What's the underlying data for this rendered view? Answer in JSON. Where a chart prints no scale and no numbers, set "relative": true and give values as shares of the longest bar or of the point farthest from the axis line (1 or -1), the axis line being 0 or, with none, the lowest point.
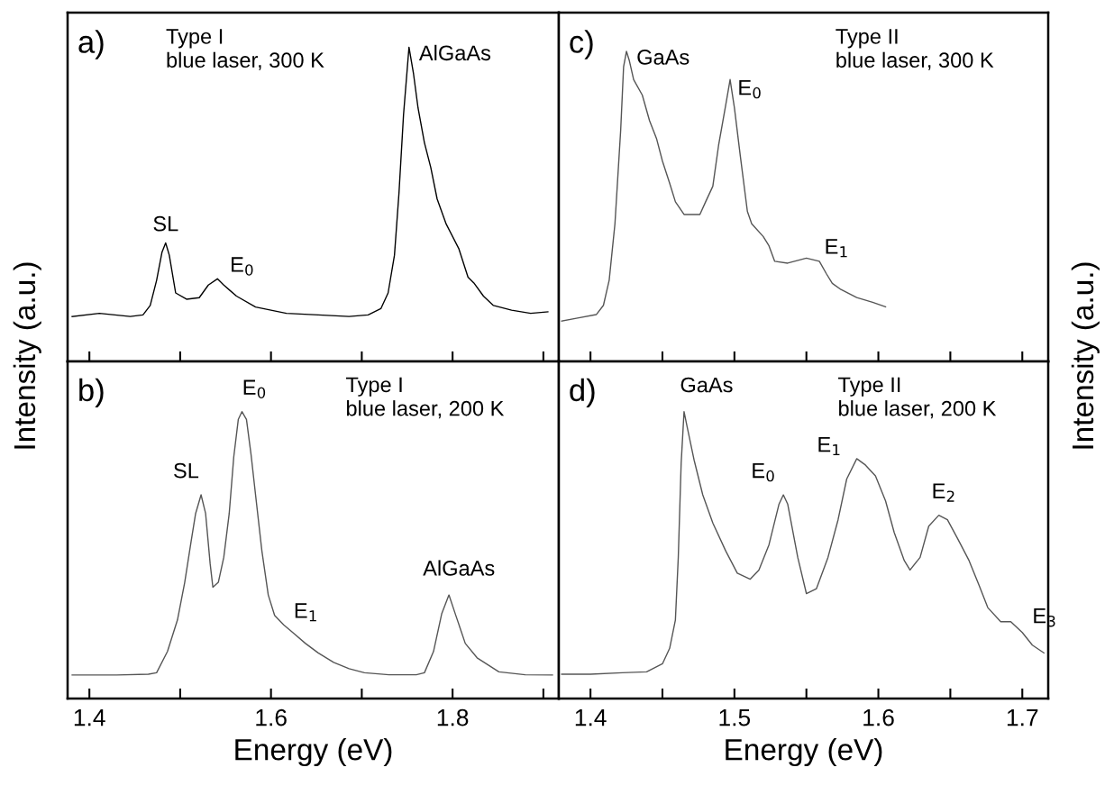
{
  "chart_data": [
    {
      "type": "line",
      "relative": true,
      "xlim": [
        1.376,
        1.917
      ],
      "xticks": [
        1.4,
        {
          "value": 1.5,
          "label": null
        },
        1.6,
        {
          "value": 1.7,
          "label": null
        },
        1.8,
        {
          "value": 1.9,
          "label": null
        }
      ],
      "tick_labels": false,
      "ylabel": "Intensity (a.u.)",
      "annotations": [
        "a)",
        "Type I\nblue laser, 300 K",
        {
          "text": "SL",
          "x": 1.484,
          "y": 0.377
        },
        {
          "text": "E$_{0}$",
          "x": 1.541,
          "y": 0.263
        },
        {
          "text": "AlGaAs",
          "x": 1.752,
          "y": 1.0
        }
      ],
      "series": [
        {
          "color": "#000000",
          "x": [
            1.381,
            1.411,
            1.445,
            1.459,
            1.467,
            1.474,
            1.48,
            1.484,
            1.488,
            1.495,
            1.507,
            1.521,
            1.531,
            1.541,
            1.548,
            1.562,
            1.583,
            1.617,
            1.652,
            1.686,
            1.707,
            1.721,
            1.729,
            1.736,
            1.741,
            1.746,
            1.752,
            1.757,
            1.762,
            1.769,
            1.776,
            1.783,
            1.793,
            1.807,
            1.817,
            1.824,
            1.834,
            1.845,
            1.865,
            1.886,
            1.905
          ],
          "values": [
            0.143,
            0.153,
            0.143,
            0.148,
            0.178,
            0.258,
            0.348,
            0.377,
            0.338,
            0.218,
            0.198,
            0.203,
            0.243,
            0.263,
            0.243,
            0.208,
            0.173,
            0.153,
            0.148,
            0.143,
            0.148,
            0.168,
            0.218,
            0.338,
            0.537,
            0.786,
            1.0,
            0.915,
            0.806,
            0.696,
            0.617,
            0.517,
            0.437,
            0.358,
            0.268,
            0.248,
            0.208,
            0.178,
            0.163,
            0.153,
            0.158
          ]
        }
      ]
    },
    {
      "type": "line",
      "relative": true,
      "xlim": [
        1.378,
        1.718
      ],
      "xticks": [
        1.4,
        {
          "value": 1.45,
          "label": null
        },
        1.5,
        {
          "value": 1.55,
          "label": null
        },
        1.6,
        {
          "value": 1.65,
          "label": null
        },
        1.7
      ],
      "tick_labels": false,
      "y2label": "Intensity (a.u.)",
      "annotations": [
        "c)",
        "Type II\nblue laser, 300 K",
        {
          "text": "GaAs",
          "x": 1.425,
          "y": 1.0
        },
        {
          "text": "E$_{0}$",
          "x": 1.497,
          "y": 0.902
        },
        {
          "text": "E$_{1}$",
          "x": 1.559,
          "y": 0.317
        }
      ],
      "series": [
        {
          "color": "#555555",
          "x": [
            1.38,
            1.391,
            1.404,
            1.409,
            1.413,
            1.417,
            1.421,
            1.423,
            1.425,
            1.427,
            1.43,
            1.436,
            1.441,
            1.446,
            1.45,
            1.455,
            1.459,
            1.465,
            1.476,
            1.48,
            1.485,
            1.489,
            1.494,
            1.497,
            1.5,
            1.504,
            1.509,
            1.512,
            1.52,
            1.524,
            1.528,
            1.537,
            1.55,
            1.559,
            1.564,
            1.568,
            1.574,
            1.585,
            1.596,
            1.605
          ],
          "values": [
            0.13,
            0.14,
            0.151,
            0.181,
            0.262,
            0.444,
            0.747,
            0.95,
            1.0,
            0.97,
            0.909,
            0.859,
            0.777,
            0.717,
            0.646,
            0.575,
            0.515,
            0.474,
            0.474,
            0.515,
            0.565,
            0.697,
            0.828,
            0.909,
            0.818,
            0.666,
            0.484,
            0.444,
            0.403,
            0.373,
            0.323,
            0.317,
            0.333,
            0.323,
            0.282,
            0.252,
            0.232,
            0.206,
            0.191,
            0.176
          ]
        }
      ]
    },
    {
      "type": "line",
      "relative": true,
      "xlim": [
        1.376,
        1.917
      ],
      "xticks": [
        1.4,
        {
          "value": 1.5,
          "label": null
        },
        1.6,
        {
          "value": 1.7,
          "label": null
        },
        1.8,
        {
          "value": 1.9,
          "label": null
        }
      ],
      "tick_labels": "x",
      "xlabel": "Energy (eV)",
      "annotations": [
        "b)",
        "Type I\nblue laser, 200 K",
        {
          "text": "SL",
          "x": 1.523,
          "y": 0.71
        },
        {
          "text": "E$_{0}$",
          "x": 1.568,
          "y": 1.0
        },
        {
          "text": "E$_{1}$",
          "x": 1.614,
          "y": 0.257
        },
        {
          "text": "AlGaAs",
          "x": 1.796,
          "y": 0.361
        }
      ],
      "series": [
        {
          "color": "#555555",
          "x": [
            1.381,
            1.43,
            1.465,
            1.474,
            1.486,
            1.497,
            1.505,
            1.512,
            1.517,
            1.523,
            1.528,
            1.533,
            1.536,
            1.542,
            1.548,
            1.554,
            1.559,
            1.564,
            1.568,
            1.573,
            1.578,
            1.583,
            1.59,
            1.597,
            1.604,
            1.614,
            1.624,
            1.638,
            1.652,
            1.669,
            1.686,
            1.703,
            1.73,
            1.76,
            1.769,
            1.779,
            1.788,
            1.796,
            1.803,
            1.814,
            1.827,
            1.851,
            1.88,
            1.91
          ],
          "values": [
            0.082,
            0.082,
            0.085,
            0.09,
            0.164,
            0.274,
            0.405,
            0.547,
            0.645,
            0.71,
            0.645,
            0.47,
            0.388,
            0.405,
            0.492,
            0.645,
            0.842,
            0.973,
            1.0,
            0.973,
            0.852,
            0.71,
            0.514,
            0.361,
            0.29,
            0.257,
            0.23,
            0.192,
            0.159,
            0.126,
            0.104,
            0.09,
            0.083,
            0.083,
            0.09,
            0.164,
            0.295,
            0.361,
            0.295,
            0.192,
            0.142,
            0.093,
            0.083,
            0.082
          ]
        }
      ]
    },
    {
      "type": "line",
      "relative": true,
      "xlim": [
        1.378,
        1.718
      ],
      "xticks": [
        1.4,
        {
          "value": 1.45,
          "label": null
        },
        1.5,
        {
          "value": 1.55,
          "label": null
        },
        1.6,
        {
          "value": 1.65,
          "label": null
        },
        1.7
      ],
      "tick_labels": "x",
      "xlabel": "Energy (eV)",
      "annotations": [
        "d)",
        "Type II\nblue laser, 200 K",
        {
          "text": "GaAs",
          "x": 1.465,
          "y": 1.0
        },
        {
          "text": "E$_{0}$",
          "x": 1.534,
          "y": 0.71
        },
        {
          "text": "E$_{1}$",
          "x": 1.585,
          "y": 0.836
        },
        {
          "text": "E$_{2}$",
          "x": 1.642,
          "y": 0.639
        },
        {
          "text": "E$_{3}$",
          "x": 1.7,
          "y": 0.23
        }
      ],
      "series": [
        {
          "color": "#555555",
          "x": [
            1.38,
            1.4,
            1.422,
            1.439,
            1.45,
            1.455,
            1.459,
            1.461,
            1.463,
            1.465,
            1.467,
            1.472,
            1.478,
            1.485,
            1.494,
            1.502,
            1.511,
            1.517,
            1.524,
            1.531,
            1.534,
            1.537,
            1.544,
            1.55,
            1.557,
            1.565,
            1.572,
            1.578,
            1.585,
            1.591,
            1.598,
            1.605,
            1.611,
            1.618,
            1.622,
            1.629,
            1.635,
            1.642,
            1.648,
            1.655,
            1.663,
            1.67,
            1.676,
            1.685,
            1.692,
            1.7,
            1.707,
            1.715
          ],
          "values": [
            0.085,
            0.085,
            0.09,
            0.093,
            0.121,
            0.175,
            0.274,
            0.492,
            0.82,
            1.0,
            0.951,
            0.831,
            0.71,
            0.612,
            0.514,
            0.437,
            0.416,
            0.448,
            0.536,
            0.678,
            0.71,
            0.678,
            0.492,
            0.366,
            0.383,
            0.492,
            0.623,
            0.765,
            0.836,
            0.814,
            0.776,
            0.689,
            0.579,
            0.481,
            0.448,
            0.492,
            0.601,
            0.639,
            0.623,
            0.558,
            0.481,
            0.394,
            0.317,
            0.268,
            0.268,
            0.23,
            0.186,
            0.159
          ]
        }
      ]
    }
  ]
}
